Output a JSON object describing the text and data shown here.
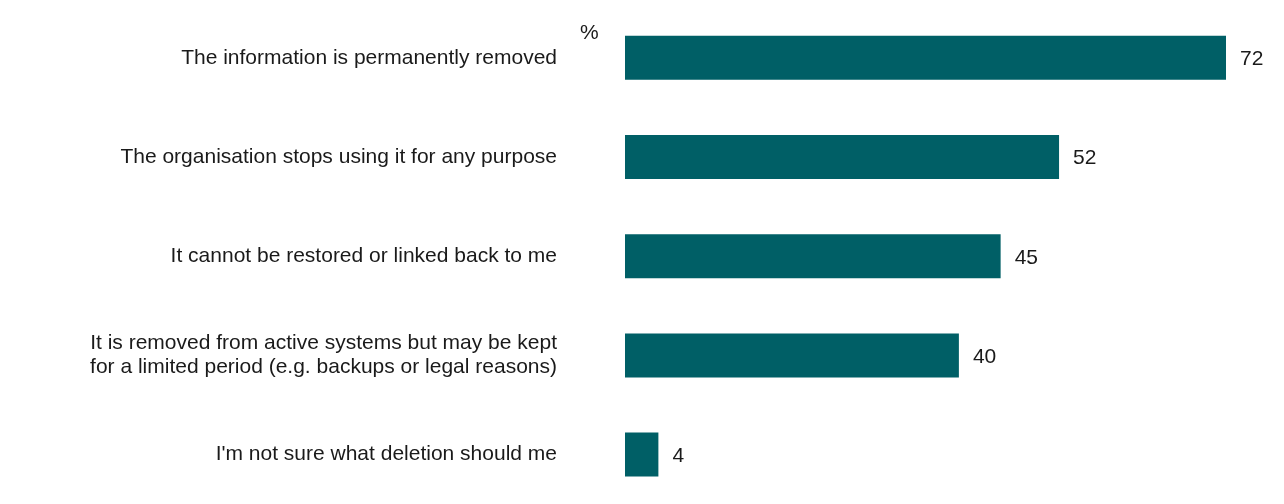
{
  "chart_data": {
    "type": "bar",
    "orientation": "horizontal",
    "categories": [
      "The information is permanently removed",
      "The organisation stops using it for any purpose",
      "It cannot be restored or linked back to me",
      "It is removed from active systems but may be kept for a limited period (e.g. backups or legal reasons)",
      "I'm not sure what deletion should me"
    ],
    "values": [
      72,
      52,
      45,
      40,
      4
    ],
    "color": "#005f66",
    "data_labels": true,
    "annotations": [
      "%"
    ]
  }
}
